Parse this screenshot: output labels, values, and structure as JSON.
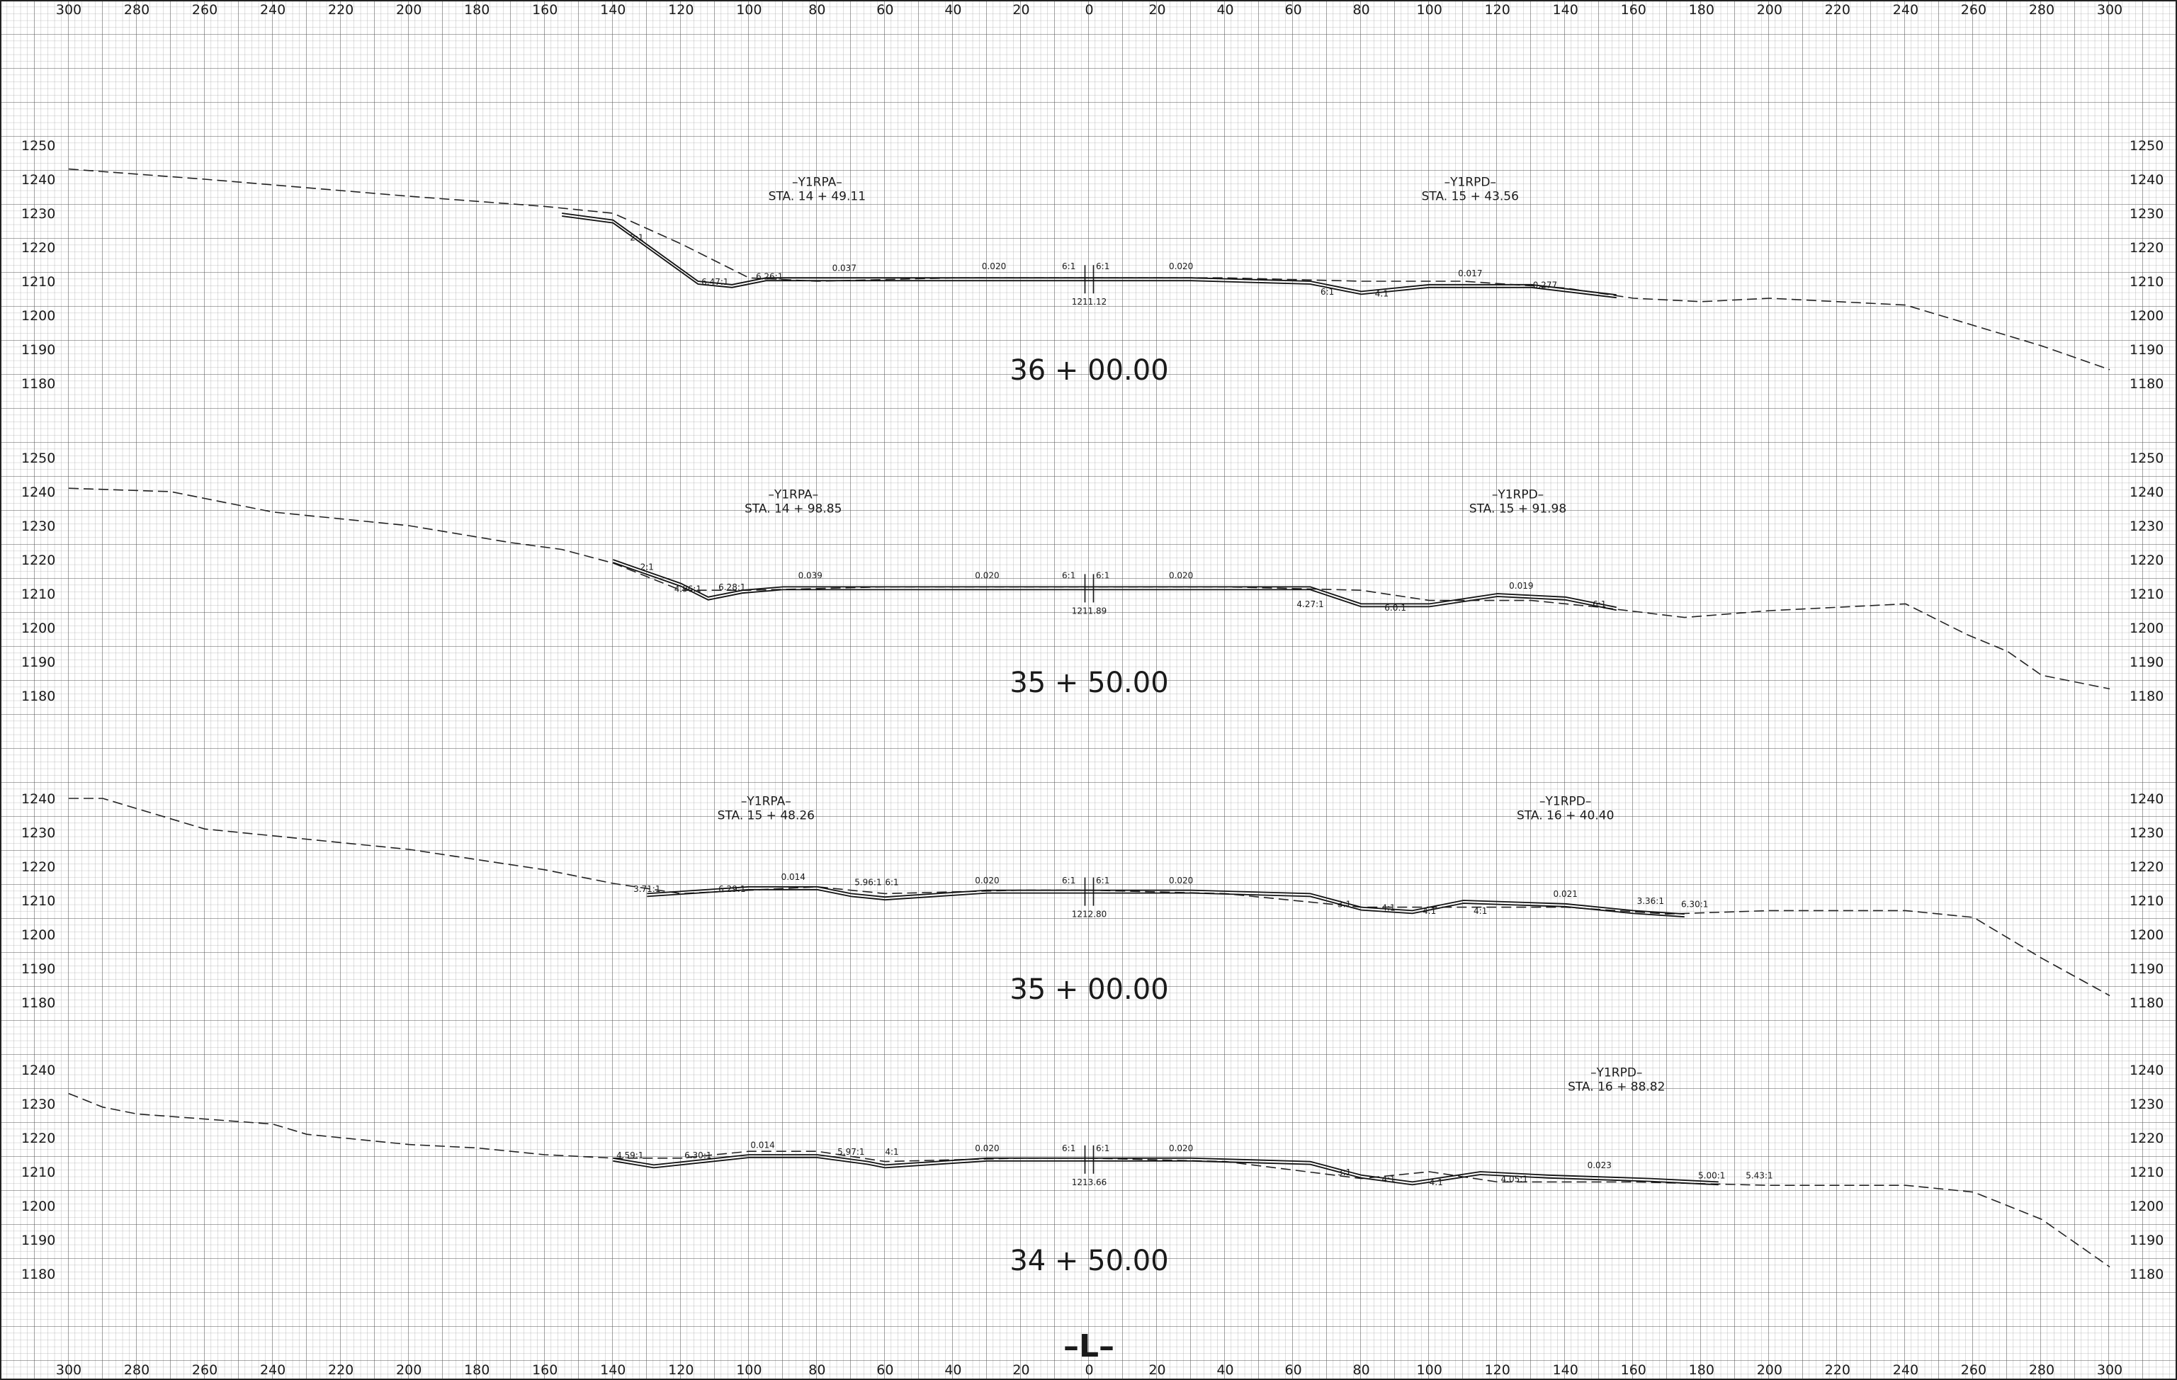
{
  "x_ticks": [
    "300",
    "280",
    "260",
    "240",
    "220",
    "200",
    "180",
    "160",
    "140",
    "120",
    "100",
    "80",
    "60",
    "40",
    "20",
    "0",
    "20",
    "40",
    "60",
    "80",
    "100",
    "120",
    "140",
    "160",
    "180",
    "200",
    "220",
    "240",
    "260",
    "280",
    "300"
  ],
  "centerline_label": "–L–",
  "chart_data": [
    {
      "type": "line",
      "station": "36 + 00.00",
      "elevation_ticks": [
        1250,
        1240,
        1230,
        1220,
        1210,
        1200,
        1190,
        1180
      ],
      "ylim": [
        1175,
        1255
      ],
      "grade_label": "1211.12",
      "ramp_labels": [
        {
          "name": "–Y1RPA–",
          "sta": "STA. 14 + 49.11",
          "x": -80
        },
        {
          "name": "–Y1RPD–",
          "sta": "STA. 15 + 43.56",
          "x": 112
        }
      ],
      "ground": [
        [
          -300,
          1243
        ],
        [
          -260,
          1240
        ],
        [
          -200,
          1235
        ],
        [
          -160,
          1232
        ],
        [
          -140,
          1230
        ],
        [
          -120,
          1221
        ],
        [
          -100,
          1211
        ],
        [
          -80,
          1210
        ],
        [
          -40,
          1211
        ],
        [
          0,
          1211
        ],
        [
          40,
          1211
        ],
        [
          80,
          1210
        ],
        [
          110,
          1210
        ],
        [
          140,
          1208
        ],
        [
          160,
          1205
        ],
        [
          180,
          1204
        ],
        [
          200,
          1205
        ],
        [
          240,
          1203
        ],
        [
          260,
          1197
        ],
        [
          280,
          1191
        ],
        [
          300,
          1184
        ]
      ],
      "design": [
        [
          -155,
          1230
        ],
        [
          -140,
          1228
        ],
        [
          -115,
          1210
        ],
        [
          -105,
          1209
        ],
        [
          -95,
          1211
        ],
        [
          -60,
          1211
        ],
        [
          -30,
          1211
        ],
        [
          -2,
          1211
        ],
        [
          2,
          1211
        ],
        [
          30,
          1211
        ],
        [
          65,
          1210
        ],
        [
          80,
          1207
        ],
        [
          100,
          1209
        ],
        [
          130,
          1209
        ],
        [
          155,
          1206
        ]
      ],
      "slope_labels": [
        {
          "x": -133,
          "y": 1222,
          "t": "2:1"
        },
        {
          "x": -110,
          "y": 1209,
          "t": "6.47:1"
        },
        {
          "x": -94,
          "y": 1210.5,
          "t": "6.26:1"
        },
        {
          "x": -72,
          "y": 1213,
          "t": "0.037"
        },
        {
          "x": -28,
          "y": 1213.5,
          "t": "0.020"
        },
        {
          "x": -6,
          "y": 1213.5,
          "t": "6:1"
        },
        {
          "x": 4,
          "y": 1213.5,
          "t": "6:1"
        },
        {
          "x": 27,
          "y": 1213.5,
          "t": "0.020"
        },
        {
          "x": 70,
          "y": 1206,
          "t": "6:1"
        },
        {
          "x": 86,
          "y": 1205.5,
          "t": "4:1"
        },
        {
          "x": 112,
          "y": 1211.5,
          "t": "0.017"
        },
        {
          "x": 134,
          "y": 1208,
          "t": "0.277"
        }
      ]
    },
    {
      "type": "line",
      "station": "35 + 50.00",
      "elevation_ticks": [
        1250,
        1240,
        1230,
        1220,
        1210,
        1200,
        1190,
        1180
      ],
      "ylim": [
        1175,
        1255
      ],
      "grade_label": "1211.89",
      "ramp_labels": [
        {
          "name": "–Y1RPA–",
          "sta": "STA. 14 + 98.85",
          "x": -87
        },
        {
          "name": "–Y1RPD–",
          "sta": "STA. 15 + 91.98",
          "x": 126
        }
      ],
      "ground": [
        [
          -300,
          1241
        ],
        [
          -270,
          1240
        ],
        [
          -260,
          1238
        ],
        [
          -240,
          1234
        ],
        [
          -220,
          1232
        ],
        [
          -200,
          1230
        ],
        [
          -170,
          1225
        ],
        [
          -155,
          1223
        ],
        [
          -140,
          1219
        ],
        [
          -120,
          1211
        ],
        [
          -100,
          1211
        ],
        [
          -60,
          1212
        ],
        [
          -20,
          1212
        ],
        [
          0,
          1212
        ],
        [
          40,
          1212
        ],
        [
          80,
          1211
        ],
        [
          100,
          1208
        ],
        [
          130,
          1208
        ],
        [
          150,
          1206
        ],
        [
          175,
          1203
        ],
        [
          200,
          1205
        ],
        [
          240,
          1207
        ],
        [
          258,
          1198
        ],
        [
          270,
          1193
        ],
        [
          280,
          1186
        ],
        [
          300,
          1182
        ]
      ],
      "design": [
        [
          -140,
          1220
        ],
        [
          -120,
          1213
        ],
        [
          -112,
          1209
        ],
        [
          -102,
          1211
        ],
        [
          -90,
          1212
        ],
        [
          -60,
          1212
        ],
        [
          -30,
          1212
        ],
        [
          -2,
          1212
        ],
        [
          2,
          1212
        ],
        [
          30,
          1212
        ],
        [
          65,
          1212
        ],
        [
          80,
          1207
        ],
        [
          100,
          1207
        ],
        [
          120,
          1210
        ],
        [
          140,
          1209
        ],
        [
          155,
          1206
        ]
      ],
      "slope_labels": [
        {
          "x": -130,
          "y": 1217,
          "t": "2:1"
        },
        {
          "x": -118,
          "y": 1210.5,
          "t": "4.96:1"
        },
        {
          "x": -105,
          "y": 1211,
          "t": "6.28:1"
        },
        {
          "x": -82,
          "y": 1214.5,
          "t": "0.039"
        },
        {
          "x": -30,
          "y": 1214.5,
          "t": "0.020"
        },
        {
          "x": -6,
          "y": 1214.5,
          "t": "6:1"
        },
        {
          "x": 4,
          "y": 1214.5,
          "t": "6:1"
        },
        {
          "x": 27,
          "y": 1214.5,
          "t": "0.020"
        },
        {
          "x": 65,
          "y": 1206,
          "t": "4.27:1"
        },
        {
          "x": 90,
          "y": 1205,
          "t": "6.0:1"
        },
        {
          "x": 127,
          "y": 1211.5,
          "t": "0.019"
        },
        {
          "x": 150,
          "y": 1206,
          "t": "6:1"
        }
      ]
    },
    {
      "type": "line",
      "station": "35 + 00.00",
      "elevation_ticks": [
        1240,
        1230,
        1220,
        1210,
        1200,
        1190,
        1180
      ],
      "ylim": [
        1175,
        1255
      ],
      "grade_label": "1212.80",
      "ramp_labels": [
        {
          "name": "–Y1RPA–",
          "sta": "STA. 15 + 48.26",
          "x": -95
        },
        {
          "name": "–Y1RPD–",
          "sta": "STA. 16 + 40.40",
          "x": 140
        }
      ],
      "ground": [
        [
          -300,
          1240
        ],
        [
          -290,
          1240
        ],
        [
          -280,
          1237
        ],
        [
          -260,
          1231
        ],
        [
          -220,
          1227
        ],
        [
          -200,
          1225
        ],
        [
          -160,
          1219
        ],
        [
          -140,
          1215
        ],
        [
          -120,
          1212
        ],
        [
          -100,
          1213
        ],
        [
          -80,
          1214
        ],
        [
          -60,
          1212
        ],
        [
          -20,
          1213
        ],
        [
          0,
          1213
        ],
        [
          40,
          1212
        ],
        [
          80,
          1208
        ],
        [
          110,
          1208
        ],
        [
          140,
          1208
        ],
        [
          170,
          1206
        ],
        [
          200,
          1207
        ],
        [
          240,
          1207
        ],
        [
          260,
          1205
        ],
        [
          280,
          1193
        ],
        [
          300,
          1182
        ]
      ],
      "design": [
        [
          -130,
          1212
        ],
        [
          -100,
          1214
        ],
        [
          -80,
          1214
        ],
        [
          -70,
          1212
        ],
        [
          -60,
          1211
        ],
        [
          -30,
          1213
        ],
        [
          -2,
          1213
        ],
        [
          2,
          1213
        ],
        [
          30,
          1213
        ],
        [
          65,
          1212
        ],
        [
          80,
          1208
        ],
        [
          95,
          1207
        ],
        [
          110,
          1210
        ],
        [
          140,
          1209
        ],
        [
          160,
          1207
        ],
        [
          175,
          1206
        ]
      ],
      "slope_labels": [
        {
          "x": -130,
          "y": 1212.5,
          "t": "3.71:1"
        },
        {
          "x": -105,
          "y": 1212.5,
          "t": "6.29:1"
        },
        {
          "x": -87,
          "y": 1216,
          "t": "0.014"
        },
        {
          "x": -65,
          "y": 1214.5,
          "t": "5.96:1"
        },
        {
          "x": -58,
          "y": 1214.5,
          "t": "6:1"
        },
        {
          "x": -30,
          "y": 1215,
          "t": "0.020"
        },
        {
          "x": -6,
          "y": 1215,
          "t": "6:1"
        },
        {
          "x": 4,
          "y": 1215,
          "t": "6:1"
        },
        {
          "x": 27,
          "y": 1215,
          "t": "0.020"
        },
        {
          "x": 75,
          "y": 1208,
          "t": "3:1"
        },
        {
          "x": 88,
          "y": 1207,
          "t": "4:1"
        },
        {
          "x": 100,
          "y": 1206,
          "t": "4:1"
        },
        {
          "x": 115,
          "y": 1206,
          "t": "4:1"
        },
        {
          "x": 140,
          "y": 1211,
          "t": "0.021"
        },
        {
          "x": 165,
          "y": 1209,
          "t": "3.36:1"
        },
        {
          "x": 178,
          "y": 1208,
          "t": "6.30:1"
        }
      ]
    },
    {
      "type": "line",
      "station": "34 + 50.00",
      "elevation_ticks": [
        1240,
        1230,
        1220,
        1210,
        1200,
        1190,
        1180
      ],
      "ylim": [
        1175,
        1255
      ],
      "grade_label": "1213.66",
      "ramp_labels": [
        {
          "name": "–Y1RPD–",
          "sta": "STA. 16 + 88.82",
          "x": 155
        }
      ],
      "ground": [
        [
          -300,
          1233
        ],
        [
          -290,
          1229
        ],
        [
          -280,
          1227
        ],
        [
          -240,
          1224
        ],
        [
          -230,
          1221
        ],
        [
          -200,
          1218
        ],
        [
          -180,
          1217
        ],
        [
          -160,
          1215
        ],
        [
          -140,
          1214
        ],
        [
          -120,
          1214
        ],
        [
          -100,
          1216
        ],
        [
          -80,
          1216
        ],
        [
          -60,
          1213
        ],
        [
          -20,
          1214
        ],
        [
          0,
          1214
        ],
        [
          40,
          1213
        ],
        [
          80,
          1208
        ],
        [
          100,
          1210
        ],
        [
          120,
          1207
        ],
        [
          160,
          1207
        ],
        [
          200,
          1206
        ],
        [
          240,
          1206
        ],
        [
          260,
          1204
        ],
        [
          280,
          1196
        ],
        [
          300,
          1182
        ]
      ],
      "design": [
        [
          -140,
          1214
        ],
        [
          -128,
          1212
        ],
        [
          -100,
          1215
        ],
        [
          -80,
          1215
        ],
        [
          -65,
          1213
        ],
        [
          -60,
          1212
        ],
        [
          -30,
          1214
        ],
        [
          -2,
          1214
        ],
        [
          2,
          1214
        ],
        [
          30,
          1214
        ],
        [
          65,
          1213
        ],
        [
          80,
          1209
        ],
        [
          95,
          1207
        ],
        [
          115,
          1210
        ],
        [
          135,
          1209
        ],
        [
          165,
          1208
        ],
        [
          185,
          1207
        ]
      ],
      "slope_labels": [
        {
          "x": -135,
          "y": 1214,
          "t": "4.59:1"
        },
        {
          "x": -115,
          "y": 1214,
          "t": "6.30:1"
        },
        {
          "x": -96,
          "y": 1217,
          "t": "0.014"
        },
        {
          "x": -70,
          "y": 1215,
          "t": "5.97:1"
        },
        {
          "x": -58,
          "y": 1215,
          "t": "4:1"
        },
        {
          "x": -30,
          "y": 1216,
          "t": "0.020"
        },
        {
          "x": -6,
          "y": 1216,
          "t": "6:1"
        },
        {
          "x": 4,
          "y": 1216,
          "t": "6:1"
        },
        {
          "x": 27,
          "y": 1216,
          "t": "0.020"
        },
        {
          "x": 75,
          "y": 1209,
          "t": "3:1"
        },
        {
          "x": 88,
          "y": 1207,
          "t": "4:1"
        },
        {
          "x": 102,
          "y": 1206,
          "t": "4:1"
        },
        {
          "x": 125,
          "y": 1207,
          "t": "4.05:1"
        },
        {
          "x": 150,
          "y": 1211,
          "t": "0.023"
        },
        {
          "x": 183,
          "y": 1208,
          "t": "5.00:1"
        },
        {
          "x": 197,
          "y": 1208,
          "t": "5.43:1"
        }
      ]
    }
  ]
}
